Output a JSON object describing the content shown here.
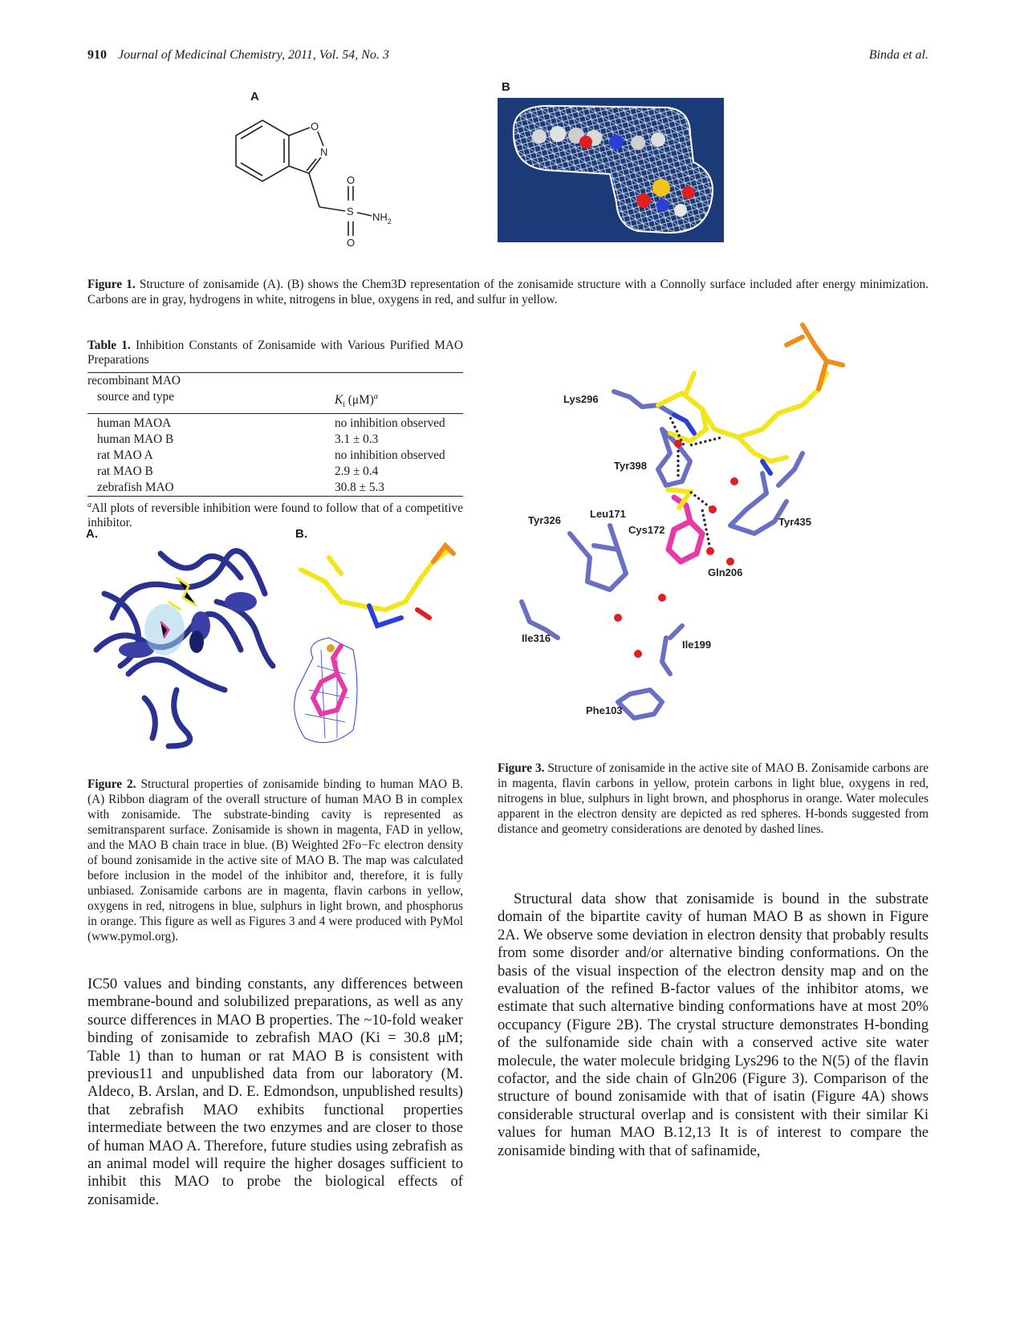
{
  "header": {
    "page_number": "910",
    "journal": "Journal of Medicinal Chemistry, 2011, Vol. 54, No. 3",
    "authors": "Binda et al."
  },
  "figure1": {
    "panel_a_label": "A",
    "panel_b_label": "B",
    "atoms": {
      "o": "O",
      "n": "N",
      "o1": "O",
      "s": "S",
      "nh2": "NH",
      "nh2_sub": "2",
      "o2": "O"
    },
    "caption_lead": "Figure 1.",
    "caption_text": "Structure of zonisamide (A). (B) shows the Chem3D representation of the zonisamide structure with a Connolly surface included after energy minimization. Carbons are in gray, hydrogens in white, nitrogens in blue, oxygens in red, and sulfur in yellow."
  },
  "table1": {
    "title_lead": "Table 1.",
    "title_text": "Inhibition Constants of Zonisamide with Various Purified MAO Preparations",
    "col1_header_line1": "recombinant MAO",
    "col1_header_line2": "source and type",
    "col2_header": "K",
    "col2_header_sub": "i",
    "col2_header_unit": " (μM)",
    "col2_header_sup": "a",
    "rows": [
      {
        "source": "human MAOA",
        "ki": "no inhibition observed"
      },
      {
        "source": "human MAO B",
        "ki": "3.1 ± 0.3"
      },
      {
        "source": "rat MAO A",
        "ki": "no inhibition observed"
      },
      {
        "source": "rat MAO B",
        "ki": "2.9 ± 0.4"
      },
      {
        "source": "zebrafish MAO",
        "ki": "30.8 ± 5.3"
      }
    ],
    "footnote_mark": "a",
    "footnote_text": "All plots of reversible inhibition were found to follow that of a competitive inhibitor."
  },
  "figure2": {
    "panel_a_label": "A.",
    "panel_b_label": "B.",
    "caption_lead": "Figure 2.",
    "caption_text": "Structural properties of zonisamide binding to human MAO B. (A) Ribbon diagram of the overall structure of human MAO B in complex with zonisamide. The substrate-binding cavity is represented as semitransparent surface. Zonisamide is shown in magenta, FAD in yellow, and the MAO B chain trace in blue. (B) Weighted 2Fo−Fc electron density of bound zonisamide in the active site of MAO B. The map was calculated before inclusion in the model of the inhibitor and, therefore, it is fully unbiased. Zonisamide carbons are in magenta, flavin carbons in yellow, oxygens in red, nitrogens in blue, sulphurs in light brown, and phosphorus in orange. This figure as well as Figures 3 and 4 were produced with PyMol (www.pymol.org)."
  },
  "figure3": {
    "residues": {
      "lys296": "Lys296",
      "tyr398": "Tyr398",
      "tyr326": "Tyr326",
      "leu171": "Leu171",
      "cys172": "Cys172",
      "tyr435": "Tyr435",
      "gln206": "Gln206",
      "ile316": "Ile316",
      "ile199": "Ile199",
      "phe103": "Phe103"
    },
    "caption_lead": "Figure 3.",
    "caption_text": "Structure of zonisamide in the active site of MAO B. Zonisamide carbons are in magenta, flavin carbons in yellow, protein carbons in light blue, oxygens in red, nitrogens in blue, sulphurs in light brown, and phosphorus in orange. Water molecules apparent in the electron density are depicted as red spheres. H-bonds suggested from distance and geometry considerations are denoted by dashed lines."
  },
  "body": {
    "left_paragraph": "IC50 values and binding constants, any differences between membrane-bound and solubilized preparations, as well as any source differences in MAO B properties. The ~10-fold weaker binding of zonisamide to zebrafish MAO (Ki = 30.8 μM; Table 1) than to human or rat MAO B is consistent with previous11 and unpublished data from our laboratory (M. Aldeco, B. Arslan, and D. E. Edmondson, unpublished results) that zebrafish MAO exhibits functional properties intermediate between the two enzymes and are closer to those of human MAO A. Therefore, future studies using zebrafish as an animal model will require the higher dosages sufficient to inhibit this MAO to probe the biological effects of zonisamide.",
    "right_paragraph": "Structural data show that zonisamide is bound in the substrate domain of the bipartite cavity of human MAO B as shown in Figure 2A. We observe some deviation in electron density that probably results from some disorder and/or alternative binding conformations. On the basis of the visual inspection of the electron density map and on the evaluation of the refined B-factor values of the inhibitor atoms, we estimate that such alternative binding conformations have at most 20% occupancy (Figure 2B). The crystal structure demonstrates H-bonding of the sulfonamide side chain with a conserved active site water molecule, the water molecule bridging Lys296 to the N(5) of the flavin cofactor, and the side chain of Gln206 (Figure 3). Comparison of the structure of bound zonisamide with that of isatin (Figure 4A) shows considerable structural overlap and is consistent with their similar Ki values for human MAO B.12,13 It is of interest to compare the zonisamide binding with that of safinamide,"
  },
  "colors": {
    "protein": "#6a6fc4",
    "flavin": "#f2e51c",
    "zonisamide": "#e63aa8",
    "oxygen": "#e02020",
    "nitrogen": "#2a3fd8",
    "phosphorus": "#f08c1a",
    "ribbon": "#2b3190",
    "surface_bg": "#1a3a78"
  }
}
